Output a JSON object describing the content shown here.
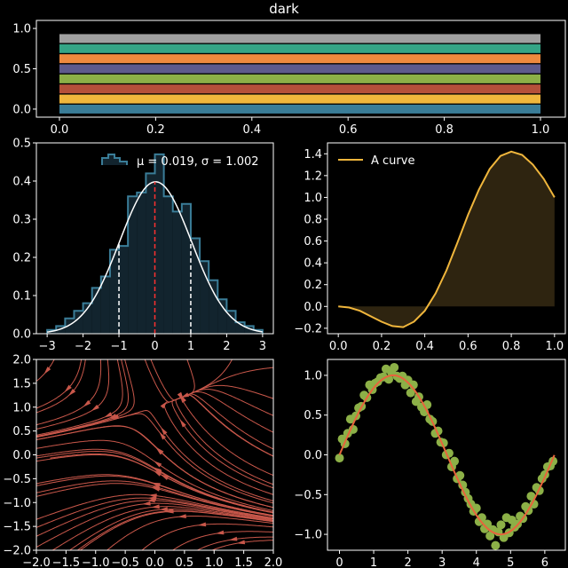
{
  "figure": {
    "title": "dark"
  },
  "chart_data": [
    {
      "type": "bar",
      "orientation": "horizontal-stacked-bars",
      "title": "dark",
      "xlim": [
        0,
        1
      ],
      "ylim": [
        -0.1,
        1.1
      ],
      "xticks": [
        "0.0",
        "0.2",
        "0.4",
        "0.6",
        "0.8",
        "1.0"
      ],
      "yticks": [
        "0.0",
        "0.5",
        "1.0"
      ],
      "bars": [
        {
          "y": 0.0,
          "start": 0.0,
          "end": 1.0,
          "color": "#3a7d98"
        },
        {
          "y": 0.125,
          "start": 0.0,
          "end": 1.0,
          "color": "#f0b63c"
        },
        {
          "y": 0.25,
          "start": 0.0,
          "end": 1.0,
          "color": "#b5503a"
        },
        {
          "y": 0.375,
          "start": 0.0,
          "end": 1.0,
          "color": "#8cb047"
        },
        {
          "y": 0.5,
          "start": 0.0,
          "end": 1.0,
          "color": "#5e5a8c"
        },
        {
          "y": 0.625,
          "start": 0.0,
          "end": 1.0,
          "color": "#ee8a3e"
        },
        {
          "y": 0.75,
          "start": 0.0,
          "end": 1.0,
          "color": "#35a586"
        },
        {
          "y": 0.875,
          "start": 0.0,
          "end": 1.0,
          "color": "#a0a0a0"
        }
      ]
    },
    {
      "type": "bar",
      "subtype": "histogram",
      "xlim": [
        -3.3,
        3.3
      ],
      "ylim": [
        0,
        0.5
      ],
      "xticks": [
        "−3",
        "−2",
        "−1",
        "0",
        "1",
        "2",
        "3"
      ],
      "yticks": [
        "0.0",
        "0.1",
        "0.2",
        "0.3",
        "0.4",
        "0.5"
      ],
      "legend_label": "μ = 0.019, σ = 1.002",
      "legend_position": "top-right",
      "mu": 0.019,
      "sigma": 1.002,
      "bins": [
        {
          "x0": -3.0,
          "x1": -2.75,
          "h": 0.01
        },
        {
          "x0": -2.75,
          "x1": -2.5,
          "h": 0.02
        },
        {
          "x0": -2.5,
          "x1": -2.25,
          "h": 0.04
        },
        {
          "x0": -2.25,
          "x1": -2.0,
          "h": 0.06
        },
        {
          "x0": -2.0,
          "x1": -1.75,
          "h": 0.08
        },
        {
          "x0": -1.75,
          "x1": -1.5,
          "h": 0.12
        },
        {
          "x0": -1.5,
          "x1": -1.25,
          "h": 0.15
        },
        {
          "x0": -1.25,
          "x1": -1.0,
          "h": 0.22
        },
        {
          "x0": -1.0,
          "x1": -0.75,
          "h": 0.23
        },
        {
          "x0": -0.75,
          "x1": -0.5,
          "h": 0.36
        },
        {
          "x0": -0.5,
          "x1": -0.25,
          "h": 0.37
        },
        {
          "x0": -0.25,
          "x1": 0.0,
          "h": 0.42
        },
        {
          "x0": 0.0,
          "x1": 0.25,
          "h": 0.47
        },
        {
          "x0": 0.25,
          "x1": 0.5,
          "h": 0.36
        },
        {
          "x0": 0.5,
          "x1": 0.75,
          "h": 0.32
        },
        {
          "x0": 0.75,
          "x1": 1.0,
          "h": 0.34
        },
        {
          "x0": 1.0,
          "x1": 1.25,
          "h": 0.25
        },
        {
          "x0": 1.25,
          "x1": 1.5,
          "h": 0.19
        },
        {
          "x0": 1.5,
          "x1": 1.75,
          "h": 0.14
        },
        {
          "x0": 1.75,
          "x1": 2.0,
          "h": 0.09
        },
        {
          "x0": 2.0,
          "x1": 2.25,
          "h": 0.06
        },
        {
          "x0": 2.25,
          "x1": 2.5,
          "h": 0.03
        },
        {
          "x0": 2.5,
          "x1": 2.75,
          "h": 0.02
        },
        {
          "x0": 2.75,
          "x1": 3.0,
          "h": 0.01
        }
      ],
      "vlines": [
        {
          "x": 0.0,
          "color": "#ff3030",
          "style": "dashed"
        },
        {
          "x": -1.0,
          "color": "#ffffff",
          "style": "dashed"
        },
        {
          "x": 1.0,
          "color": "#ffffff",
          "style": "dashed"
        }
      ],
      "colors": {
        "edge": "#3a7d98",
        "fill": "#12242e",
        "pdf": "#ffffff"
      }
    },
    {
      "type": "area",
      "xlim": [
        -0.05,
        1.05
      ],
      "ylim": [
        -0.25,
        1.5
      ],
      "xticks": [
        "0.0",
        "0.2",
        "0.4",
        "0.6",
        "0.8",
        "1.0"
      ],
      "yticks": [
        "−0.2",
        "0.0",
        "0.2",
        "0.4",
        "0.6",
        "0.8",
        "1.0",
        "1.2",
        "1.4"
      ],
      "legend_label": "A curve",
      "legend_position": "top-left",
      "x": [
        0.0,
        0.05,
        0.1,
        0.15,
        0.2,
        0.25,
        0.3,
        0.35,
        0.4,
        0.45,
        0.5,
        0.55,
        0.6,
        0.65,
        0.7,
        0.75,
        0.8,
        0.85,
        0.9,
        0.95,
        1.0
      ],
      "y": [
        0.0,
        -0.01,
        -0.04,
        -0.09,
        -0.14,
        -0.18,
        -0.19,
        -0.14,
        -0.04,
        0.12,
        0.33,
        0.58,
        0.84,
        1.07,
        1.26,
        1.38,
        1.42,
        1.39,
        1.3,
        1.17,
        1.0
      ],
      "colors": {
        "line": "#f0b63c",
        "fill": "#2e2410"
      }
    },
    {
      "type": "streamplot",
      "xlim": [
        -2,
        2
      ],
      "ylim": [
        -2,
        2
      ],
      "xticks": [
        "−2.0",
        "−1.5",
        "−1.0",
        "−0.5",
        "0.0",
        "0.5",
        "1.0",
        "1.5",
        "2.0"
      ],
      "yticks": [
        "−2.0",
        "−1.5",
        "−1.0",
        "−0.5",
        "0.0",
        "0.5",
        "1.0",
        "1.5",
        "2.0"
      ],
      "colors": {
        "line": "#c8574a"
      }
    },
    {
      "type": "scatter",
      "xlim": [
        -0.35,
        6.6
      ],
      "ylim": [
        -1.2,
        1.2
      ],
      "xticks": [
        "0",
        "1",
        "2",
        "3",
        "4",
        "5",
        "6"
      ],
      "yticks": [
        "−1.0",
        "−0.5",
        "0.0",
        "0.5",
        "1.0"
      ],
      "series": [
        {
          "kind": "points",
          "color": "#8cb047",
          "x": [
            0.0,
            0.08,
            0.16,
            0.24,
            0.32,
            0.4,
            0.48,
            0.56,
            0.64,
            0.72,
            0.8,
            0.88,
            0.96,
            1.04,
            1.12,
            1.2,
            1.28,
            1.36,
            1.44,
            1.52,
            1.6,
            1.68,
            1.76,
            1.84,
            1.92,
            2.0,
            2.08,
            2.16,
            2.24,
            2.32,
            2.4,
            2.48,
            2.56,
            2.64,
            2.72,
            2.8,
            2.88,
            2.96,
            3.04,
            3.12,
            3.2,
            3.28,
            3.36,
            3.44,
            3.52,
            3.6,
            3.68,
            3.76,
            3.84,
            3.92,
            4.0,
            4.08,
            4.16,
            4.24,
            4.32,
            4.4,
            4.48,
            4.56,
            4.64,
            4.72,
            4.8,
            4.88,
            4.96,
            5.04,
            5.12,
            5.2,
            5.28,
            5.36,
            5.44,
            5.52,
            5.6,
            5.68,
            5.76,
            5.84,
            5.92,
            6.0,
            6.08,
            6.16,
            6.24
          ],
          "y": [
            -0.04,
            0.2,
            0.14,
            0.27,
            0.45,
            0.32,
            0.49,
            0.59,
            0.61,
            0.75,
            0.72,
            0.88,
            0.82,
            0.9,
            0.92,
            0.97,
            0.98,
            1.08,
            0.95,
            1.04,
            1.1,
            0.99,
            0.96,
            0.99,
            0.88,
            0.94,
            0.78,
            0.88,
            0.67,
            0.73,
            0.6,
            0.54,
            0.63,
            0.45,
            0.42,
            0.27,
            0.3,
            0.16,
            0.15,
            0.0,
            0.02,
            -0.15,
            -0.08,
            -0.3,
            -0.26,
            -0.38,
            -0.47,
            -0.55,
            -0.62,
            -0.71,
            -0.67,
            -0.84,
            -0.79,
            -0.93,
            -0.87,
            -1.02,
            -0.94,
            -1.14,
            -0.97,
            -0.88,
            -1.04,
            -0.79,
            -0.98,
            -0.82,
            -0.91,
            -0.87,
            -0.77,
            -0.8,
            -0.65,
            -0.7,
            -0.52,
            -0.62,
            -0.41,
            -0.45,
            -0.3,
            -0.25,
            -0.15,
            -0.14,
            -0.08
          ]
        },
        {
          "kind": "line",
          "color": "#e8643c",
          "function": "sin(x)"
        }
      ]
    }
  ]
}
